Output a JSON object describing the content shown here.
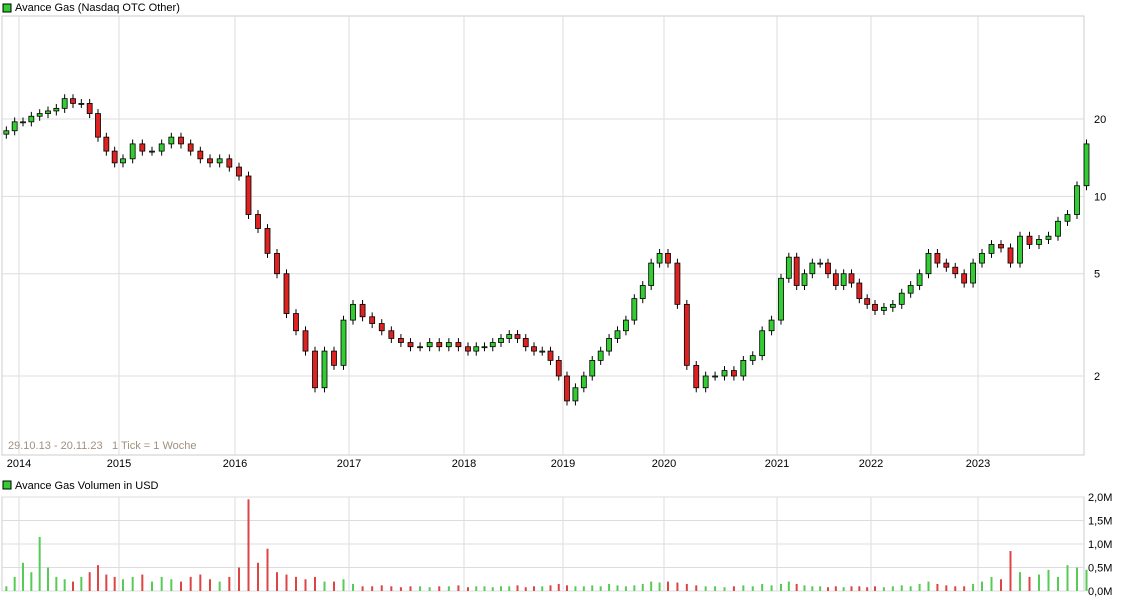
{
  "chart_data": [
    {
      "type": "candlestick",
      "title": "Avance Gas (Nasdaq OTC Other)",
      "subtitle": "29.10.13 - 20.11.23",
      "tick_note": "1 Tick = 1 Woche",
      "y_scale": "log",
      "y_ticks": [
        "2",
        "5",
        "10",
        "20"
      ],
      "y_tick_values": [
        2,
        5,
        10,
        20
      ],
      "x_ticks": [
        "2014",
        "2015",
        "2016",
        "2017",
        "2018",
        "2019",
        "2020",
        "2021",
        "2022",
        "2023"
      ],
      "grid": true,
      "legend_color": "#33cc33",
      "up_color": "#33cc33",
      "down_color": "#dd2222",
      "start_month": "2013-11",
      "monthly_close": [
        18,
        19.5,
        19.5,
        20.5,
        21,
        21.5,
        22,
        24,
        23,
        23,
        21,
        17,
        15,
        13.5,
        14,
        16,
        15,
        15,
        16,
        17,
        16,
        15,
        14,
        13.5,
        14,
        13,
        12,
        8.5,
        7.5,
        6,
        5,
        3.5,
        3,
        2.5,
        1.8,
        2.5,
        2.2,
        3.3,
        3.8,
        3.4,
        3.2,
        3.0,
        2.8,
        2.7,
        2.6,
        2.6,
        2.7,
        2.6,
        2.7,
        2.6,
        2.5,
        2.6,
        2.6,
        2.7,
        2.8,
        2.9,
        2.8,
        2.6,
        2.5,
        2.5,
        2.3,
        2.0,
        1.6,
        1.8,
        2.0,
        2.3,
        2.5,
        2.8,
        3.0,
        3.3,
        4.0,
        4.5,
        5.5,
        6.0,
        5.5,
        3.8,
        2.2,
        1.8,
        2.0,
        2.0,
        2.1,
        2.0,
        2.3,
        2.4,
        3.0,
        3.3,
        4.8,
        5.8,
        4.5,
        5.0,
        5.5,
        5.5,
        5.0,
        4.5,
        5.0,
        4.6,
        4.0,
        3.8,
        3.6,
        3.7,
        3.8,
        4.2,
        4.5,
        5.0,
        6.0,
        5.5,
        5.3,
        5.0,
        4.6,
        5.5,
        6.0,
        6.5,
        6.3,
        5.5,
        7.0,
        6.5,
        6.8,
        7.0,
        8.0,
        8.5,
        11,
        16
      ]
    },
    {
      "type": "bar",
      "title": "Avance Gas Volumen in USD",
      "y_ticks": [
        "0,0M",
        "0,5M",
        "1,0M",
        "1,5M",
        "2,0M"
      ],
      "y_tick_values": [
        0,
        0.5,
        1.0,
        1.5,
        2.0
      ],
      "ylim": [
        0,
        2.0
      ],
      "unit": "M USD",
      "monthly_volume": [
        0.1,
        0.3,
        0.6,
        0.4,
        1.15,
        0.5,
        0.3,
        0.25,
        0.2,
        0.3,
        0.4,
        0.55,
        0.35,
        0.3,
        0.25,
        0.3,
        0.35,
        0.2,
        0.3,
        0.25,
        0.2,
        0.3,
        0.35,
        0.25,
        0.2,
        0.3,
        0.5,
        1.95,
        0.6,
        0.9,
        0.4,
        0.35,
        0.3,
        0.25,
        0.3,
        0.2,
        0.2,
        0.25,
        0.15,
        0.1,
        0.1,
        0.12,
        0.1,
        0.08,
        0.1,
        0.1,
        0.08,
        0.1,
        0.1,
        0.12,
        0.08,
        0.1,
        0.1,
        0.08,
        0.1,
        0.1,
        0.12,
        0.08,
        0.1,
        0.1,
        0.12,
        0.15,
        0.12,
        0.1,
        0.1,
        0.12,
        0.1,
        0.15,
        0.12,
        0.1,
        0.12,
        0.15,
        0.2,
        0.18,
        0.2,
        0.18,
        0.15,
        0.12,
        0.1,
        0.1,
        0.08,
        0.1,
        0.12,
        0.1,
        0.15,
        0.12,
        0.15,
        0.2,
        0.15,
        0.12,
        0.1,
        0.1,
        0.08,
        0.1,
        0.08,
        0.1,
        0.1,
        0.08,
        0.1,
        0.08,
        0.1,
        0.12,
        0.1,
        0.15,
        0.2,
        0.15,
        0.12,
        0.1,
        0.1,
        0.15,
        0.2,
        0.3,
        0.25,
        0.85,
        0.4,
        0.3,
        0.35,
        0.45,
        0.3,
        0.55,
        0.5,
        0.45
      ]
    }
  ]
}
